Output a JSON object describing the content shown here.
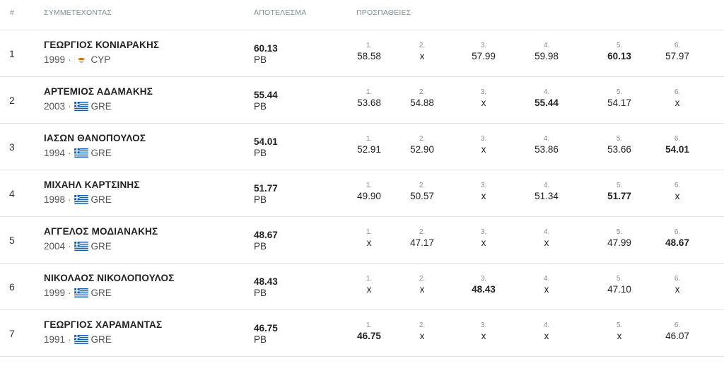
{
  "header": {
    "rank": "#",
    "athlete": "ΣΥΜΜΕΤΕΧΟΝΤΑΣ",
    "result": "ΑΠΟΤΕΛΕΣΜΑ",
    "attempts": "ΠΡΟΣΠΑΘΕΙΕΣ"
  },
  "rows": [
    {
      "rank": "1",
      "name": "ΓΕΩΡΓΙΟΣ ΚΟΝΙΑΡΑΚΗΣ",
      "year": "1999",
      "country": "CYP",
      "flag": "cyprus-flag-icon",
      "result": "60.13",
      "tag": "PB",
      "attempts": [
        {
          "idx": "1.",
          "mark": "58.58",
          "best": false
        },
        {
          "idx": "2.",
          "mark": "x",
          "best": false
        },
        {
          "idx": "3.",
          "mark": "57.99",
          "best": false
        },
        {
          "idx": "4.",
          "mark": "59.98",
          "best": false
        },
        {
          "idx": "5.",
          "mark": "60.13",
          "best": true
        },
        {
          "idx": "6.",
          "mark": "57.97",
          "best": false
        }
      ]
    },
    {
      "rank": "2",
      "name": "ΑΡΤΕΜΙΟΣ ΑΔΑΜΑΚΗΣ",
      "year": "2003",
      "country": "GRE",
      "flag": "greece-flag-icon",
      "result": "55.44",
      "tag": "PB",
      "attempts": [
        {
          "idx": "1.",
          "mark": "53.68",
          "best": false
        },
        {
          "idx": "2.",
          "mark": "54.88",
          "best": false
        },
        {
          "idx": "3.",
          "mark": "x",
          "best": false
        },
        {
          "idx": "4.",
          "mark": "55.44",
          "best": true
        },
        {
          "idx": "5.",
          "mark": "54.17",
          "best": false
        },
        {
          "idx": "6.",
          "mark": "x",
          "best": false
        }
      ]
    },
    {
      "rank": "3",
      "name": "ΙΑΣΩΝ ΘΑΝΟΠΟΥΛΟΣ",
      "year": "1994",
      "country": "GRE",
      "flag": "greece-flag-icon",
      "result": "54.01",
      "tag": "PB",
      "attempts": [
        {
          "idx": "1.",
          "mark": "52.91",
          "best": false
        },
        {
          "idx": "2.",
          "mark": "52.90",
          "best": false
        },
        {
          "idx": "3.",
          "mark": "x",
          "best": false
        },
        {
          "idx": "4.",
          "mark": "53.86",
          "best": false
        },
        {
          "idx": "5.",
          "mark": "53.66",
          "best": false
        },
        {
          "idx": "6.",
          "mark": "54.01",
          "best": true
        }
      ]
    },
    {
      "rank": "4",
      "name": "ΜΙΧΑΗΛ ΚΑΡΤΣΙΝΗΣ",
      "year": "1998",
      "country": "GRE",
      "flag": "greece-flag-icon",
      "result": "51.77",
      "tag": "PB",
      "attempts": [
        {
          "idx": "1.",
          "mark": "49.90",
          "best": false
        },
        {
          "idx": "2.",
          "mark": "50.57",
          "best": false
        },
        {
          "idx": "3.",
          "mark": "x",
          "best": false
        },
        {
          "idx": "4.",
          "mark": "51.34",
          "best": false
        },
        {
          "idx": "5.",
          "mark": "51.77",
          "best": true
        },
        {
          "idx": "6.",
          "mark": "x",
          "best": false
        }
      ]
    },
    {
      "rank": "5",
      "name": "ΑΓΓΕΛΟΣ ΜΟΔΙΑΝΑΚΗΣ",
      "year": "2004",
      "country": "GRE",
      "flag": "greece-flag-icon",
      "result": "48.67",
      "tag": "PB",
      "attempts": [
        {
          "idx": "1.",
          "mark": "x",
          "best": false
        },
        {
          "idx": "2.",
          "mark": "47.17",
          "best": false
        },
        {
          "idx": "3.",
          "mark": "x",
          "best": false
        },
        {
          "idx": "4.",
          "mark": "x",
          "best": false
        },
        {
          "idx": "5.",
          "mark": "47.99",
          "best": false
        },
        {
          "idx": "6.",
          "mark": "48.67",
          "best": true
        }
      ]
    },
    {
      "rank": "6",
      "name": "ΝΙΚΟΛΑΟΣ ΝΙΚΟΛΟΠΟΥΛΟΣ",
      "year": "1999",
      "country": "GRE",
      "flag": "greece-flag-icon",
      "result": "48.43",
      "tag": "PB",
      "attempts": [
        {
          "idx": "1.",
          "mark": "x",
          "best": false
        },
        {
          "idx": "2.",
          "mark": "x",
          "best": false
        },
        {
          "idx": "3.",
          "mark": "48.43",
          "best": true
        },
        {
          "idx": "4.",
          "mark": "x",
          "best": false
        },
        {
          "idx": "5.",
          "mark": "47.10",
          "best": false
        },
        {
          "idx": "6.",
          "mark": "x",
          "best": false
        }
      ]
    },
    {
      "rank": "7",
      "name": "ΓΕΩΡΓΙΟΣ ΧΑΡΑΜΑΝΤΑΣ",
      "year": "1991",
      "country": "GRE",
      "flag": "greece-flag-icon",
      "result": "46.75",
      "tag": "PB",
      "attempts": [
        {
          "idx": "1.",
          "mark": "46.75",
          "best": true
        },
        {
          "idx": "2.",
          "mark": "x",
          "best": false
        },
        {
          "idx": "3.",
          "mark": "x",
          "best": false
        },
        {
          "idx": "4.",
          "mark": "x",
          "best": false
        },
        {
          "idx": "5.",
          "mark": "x",
          "best": false
        },
        {
          "idx": "6.",
          "mark": "46.07",
          "best": false
        }
      ]
    }
  ]
}
